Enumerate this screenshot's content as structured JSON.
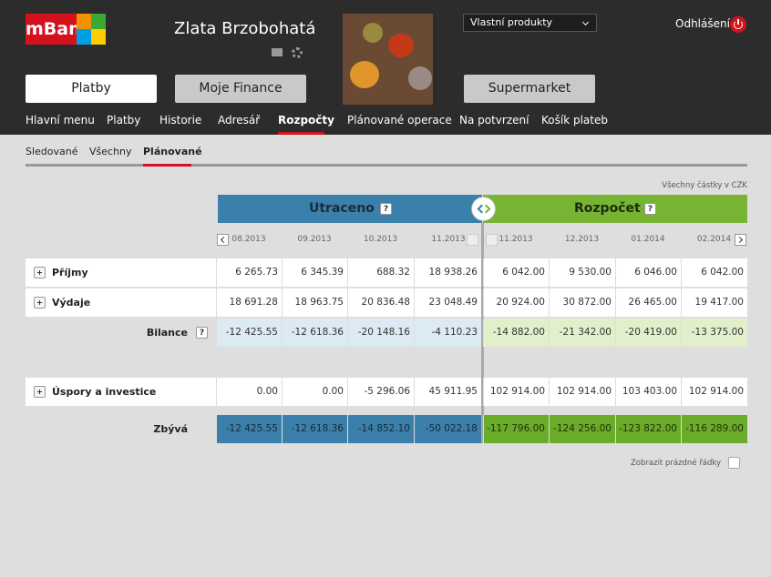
{
  "header": {
    "logo": "mBank",
    "user_name": "Zlata Brzobohatá",
    "product_select": "Vlastní produkty",
    "logout": "Odhlášení",
    "buttons": [
      "Platby",
      "Moje Finance",
      "Supermarket"
    ],
    "active_button": 0
  },
  "nav": {
    "items": [
      "Hlavní menu",
      "Platby",
      "Historie",
      "Adresář",
      "Rozpočty",
      "Plánované operace",
      "Na potvrzení",
      "Košík plateb"
    ],
    "active": 4
  },
  "subtabs": {
    "items": [
      "Sledované",
      "Všechny",
      "Plánované"
    ],
    "active": 2
  },
  "budget": {
    "currency_note": "Všechny částky v CZK",
    "spent_title": "Utraceno",
    "plan_title": "Rozpočet",
    "help": "?",
    "periods": [
      "08.2013",
      "09.2013",
      "10.2013",
      "11.2013",
      "11.2013",
      "12.2013",
      "01.2014",
      "02.2014"
    ],
    "rows": [
      {
        "label": "Příjmy",
        "values": [
          "6 265.73",
          "6 345.39",
          "688.32",
          "18 938.26",
          "6 042.00",
          "9 530.00",
          "6 046.00",
          "6 042.00"
        ]
      },
      {
        "label": "Výdaje",
        "values": [
          "18 691.28",
          "18 963.75",
          "20 836.48",
          "23 048.49",
          "20 924.00",
          "30 872.00",
          "26 465.00",
          "19 417.00"
        ]
      },
      {
        "label": "Bilance",
        "values": [
          "-12 425.55",
          "-12 618.36",
          "-20 148.16",
          "-4 110.23",
          "-14 882.00",
          "-21 342.00",
          "-20 419.00",
          "-13 375.00"
        ]
      },
      {
        "label": "Úspory a investice",
        "values": [
          "0.00",
          "0.00",
          "-5 296.06",
          "45 911.95",
          "102 914.00",
          "102 914.00",
          "103 403.00",
          "102 914.00"
        ]
      },
      {
        "label": "Zbývá",
        "values": [
          "-12 425.55",
          "-12 618.36",
          "-14 852.10",
          "-50 022.18",
          "-117 796.00",
          "-124 256.00",
          "-123 822.00",
          "-116 289.00"
        ]
      }
    ],
    "show_empty": "Zobrazit prázdné řádky"
  }
}
